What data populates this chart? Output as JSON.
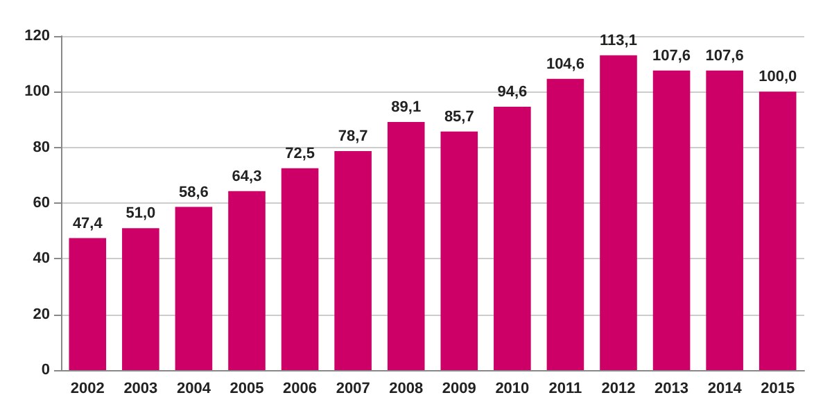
{
  "chart_data": {
    "type": "bar",
    "categories": [
      "2002",
      "2003",
      "2004",
      "2005",
      "2006",
      "2007",
      "2008",
      "2009",
      "2010",
      "2011",
      "2012",
      "2013",
      "2014",
      "2015"
    ],
    "values": [
      47.4,
      51.0,
      58.6,
      64.3,
      72.5,
      78.7,
      89.1,
      85.7,
      94.6,
      104.6,
      113.1,
      107.6,
      107.6,
      100.0
    ],
    "value_labels": [
      "47,4",
      "51,0",
      "58,6",
      "64,3",
      "72,5",
      "78,7",
      "89,1",
      "85,7",
      "94,6",
      "104,6",
      "113,1",
      "107,6",
      "107,6",
      "100,0"
    ],
    "color": "#cc0066",
    "ylim": [
      0,
      120
    ],
    "yticks": [
      0,
      20,
      40,
      60,
      80,
      100,
      120
    ],
    "grid": "y"
  }
}
